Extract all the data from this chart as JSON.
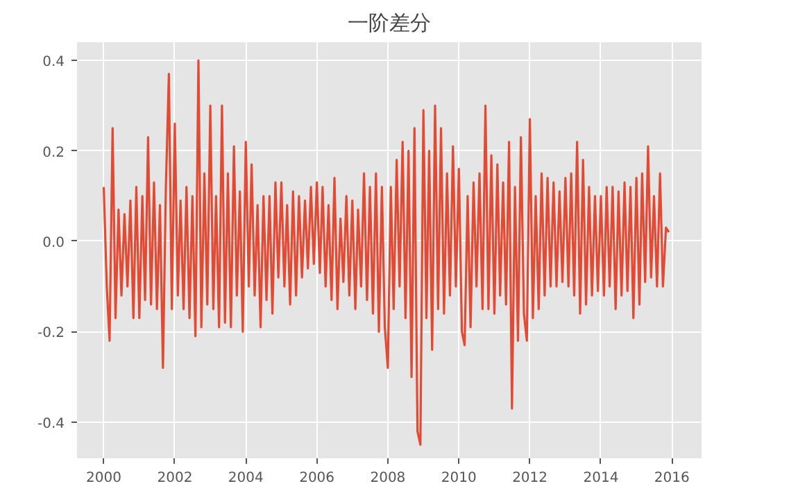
{
  "chart_data": {
    "type": "line",
    "title": "一阶差分",
    "x": [
      "2000-01",
      "2000-02",
      "2000-03",
      "2000-04",
      "2000-05",
      "2000-06",
      "2000-07",
      "2000-08",
      "2000-09",
      "2000-10",
      "2000-11",
      "2000-12",
      "2001-01",
      "2001-02",
      "2001-03",
      "2001-04",
      "2001-05",
      "2001-06",
      "2001-07",
      "2001-08",
      "2001-09",
      "2001-10",
      "2001-11",
      "2001-12",
      "2002-01",
      "2002-02",
      "2002-03",
      "2002-04",
      "2002-05",
      "2002-06",
      "2002-07",
      "2002-08",
      "2002-09",
      "2002-10",
      "2002-11",
      "2002-12",
      "2003-01",
      "2003-02",
      "2003-03",
      "2003-04",
      "2003-05",
      "2003-06",
      "2003-07",
      "2003-08",
      "2003-09",
      "2003-10",
      "2003-11",
      "2003-12",
      "2004-01",
      "2004-02",
      "2004-03",
      "2004-04",
      "2004-05",
      "2004-06",
      "2004-07",
      "2004-08",
      "2004-09",
      "2004-10",
      "2004-11",
      "2004-12",
      "2005-01",
      "2005-02",
      "2005-03",
      "2005-04",
      "2005-05",
      "2005-06",
      "2005-07",
      "2005-08",
      "2005-09",
      "2005-10",
      "2005-11",
      "2005-12",
      "2006-01",
      "2006-02",
      "2006-03",
      "2006-04",
      "2006-05",
      "2006-06",
      "2006-07",
      "2006-08",
      "2006-09",
      "2006-10",
      "2006-11",
      "2006-12",
      "2007-01",
      "2007-02",
      "2007-03",
      "2007-04",
      "2007-05",
      "2007-06",
      "2007-07",
      "2007-08",
      "2007-09",
      "2007-10",
      "2007-11",
      "2007-12",
      "2008-01",
      "2008-02",
      "2008-03",
      "2008-04",
      "2008-05",
      "2008-06",
      "2008-07",
      "2008-08",
      "2008-09",
      "2008-10",
      "2008-11",
      "2008-12",
      "2009-01",
      "2009-02",
      "2009-03",
      "2009-04",
      "2009-05",
      "2009-06",
      "2009-07",
      "2009-08",
      "2009-09",
      "2009-10",
      "2009-11",
      "2009-12",
      "2010-01",
      "2010-02",
      "2010-03",
      "2010-04",
      "2010-05",
      "2010-06",
      "2010-07",
      "2010-08",
      "2010-09",
      "2010-10",
      "2010-11",
      "2010-12",
      "2011-01",
      "2011-02",
      "2011-03",
      "2011-04",
      "2011-05",
      "2011-06",
      "2011-07",
      "2011-08",
      "2011-09",
      "2011-10",
      "2011-11",
      "2011-12",
      "2012-01",
      "2012-02",
      "2012-03",
      "2012-04",
      "2012-05",
      "2012-06",
      "2012-07",
      "2012-08",
      "2012-09",
      "2012-10",
      "2012-11",
      "2012-12",
      "2013-01",
      "2013-02",
      "2013-03",
      "2013-04",
      "2013-05",
      "2013-06",
      "2013-07",
      "2013-08",
      "2013-09",
      "2013-10",
      "2013-11",
      "2013-12",
      "2014-01",
      "2014-02",
      "2014-03",
      "2014-04",
      "2014-05",
      "2014-06",
      "2014-07",
      "2014-08",
      "2014-09",
      "2014-10",
      "2014-11",
      "2014-12",
      "2015-01",
      "2015-02",
      "2015-03",
      "2015-04",
      "2015-05",
      "2015-06",
      "2015-07",
      "2015-08",
      "2015-09",
      "2015-10",
      "2015-11",
      "2015-12"
    ],
    "series": [
      {
        "color": "#e24a33",
        "values": [
          0.12,
          -0.1,
          -0.22,
          0.25,
          -0.17,
          0.07,
          -0.12,
          0.06,
          -0.1,
          0.09,
          -0.17,
          0.12,
          -0.17,
          0.1,
          -0.13,
          0.23,
          -0.14,
          0.13,
          -0.15,
          0.08,
          -0.28,
          0.12,
          0.37,
          -0.15,
          0.26,
          -0.12,
          0.09,
          -0.15,
          0.12,
          -0.17,
          0.1,
          -0.21,
          0.4,
          -0.19,
          0.15,
          -0.14,
          0.3,
          -0.15,
          0.1,
          -0.19,
          0.3,
          -0.18,
          0.15,
          -0.19,
          0.21,
          -0.12,
          0.11,
          -0.2,
          0.22,
          -0.1,
          0.17,
          -0.12,
          0.08,
          -0.19,
          0.1,
          -0.13,
          0.1,
          -0.16,
          0.13,
          -0.08,
          0.13,
          -0.1,
          0.08,
          -0.14,
          0.11,
          -0.12,
          0.1,
          -0.08,
          0.09,
          -0.06,
          0.12,
          -0.05,
          0.13,
          -0.07,
          0.12,
          -0.1,
          0.08,
          -0.13,
          0.14,
          -0.15,
          0.05,
          -0.09,
          0.1,
          -0.12,
          0.09,
          -0.15,
          0.07,
          -0.1,
          0.15,
          -0.13,
          0.12,
          -0.16,
          0.15,
          -0.2,
          0.12,
          -0.19,
          -0.28,
          0.12,
          -0.15,
          0.18,
          -0.1,
          0.22,
          -0.17,
          0.2,
          -0.3,
          0.25,
          -0.42,
          -0.45,
          0.29,
          -0.17,
          0.2,
          -0.24,
          0.3,
          -0.15,
          0.25,
          -0.16,
          0.15,
          -0.12,
          0.21,
          -0.1,
          0.16,
          -0.2,
          -0.23,
          0.1,
          -0.19,
          0.13,
          -0.1,
          0.15,
          -0.15,
          0.3,
          -0.15,
          0.19,
          -0.16,
          0.17,
          -0.12,
          0.13,
          -0.14,
          0.22,
          -0.37,
          0.12,
          -0.22,
          0.23,
          -0.16,
          -0.22,
          0.27,
          -0.17,
          0.1,
          -0.15,
          0.15,
          -0.12,
          0.14,
          -0.1,
          0.13,
          -0.1,
          0.11,
          -0.09,
          0.14,
          -0.1,
          0.15,
          -0.12,
          0.22,
          -0.16,
          0.18,
          -0.14,
          0.12,
          -0.12,
          0.1,
          -0.11,
          0.1,
          -0.12,
          0.12,
          -0.1,
          0.12,
          -0.15,
          0.11,
          -0.12,
          0.13,
          -0.11,
          0.12,
          -0.17,
          0.14,
          -0.14,
          0.15,
          -0.09,
          0.21,
          -0.08,
          0.1,
          -0.1,
          0.15,
          -0.1,
          0.03,
          0.02
        ]
      }
    ],
    "xlim": [
      "1999-04",
      "2016-11"
    ],
    "xticks": [
      {
        "value": "2000",
        "label": "2000"
      },
      {
        "value": "2002",
        "label": "2002"
      },
      {
        "value": "2004",
        "label": "2004"
      },
      {
        "value": "2006",
        "label": "2006"
      },
      {
        "value": "2008",
        "label": "2008"
      },
      {
        "value": "2010",
        "label": "2010"
      },
      {
        "value": "2012",
        "label": "2012"
      },
      {
        "value": "2014",
        "label": "2014"
      },
      {
        "value": "2016",
        "label": "2016"
      }
    ],
    "ylim": [
      -0.48,
      0.44
    ],
    "yticks": [
      {
        "value": -0.4,
        "label": "-0.4"
      },
      {
        "value": -0.2,
        "label": "-0.2"
      },
      {
        "value": 0.0,
        "label": "0.0"
      },
      {
        "value": 0.2,
        "label": "0.2"
      },
      {
        "value": 0.4,
        "label": "0.4"
      }
    ],
    "grid": true,
    "line_style": "solid"
  }
}
